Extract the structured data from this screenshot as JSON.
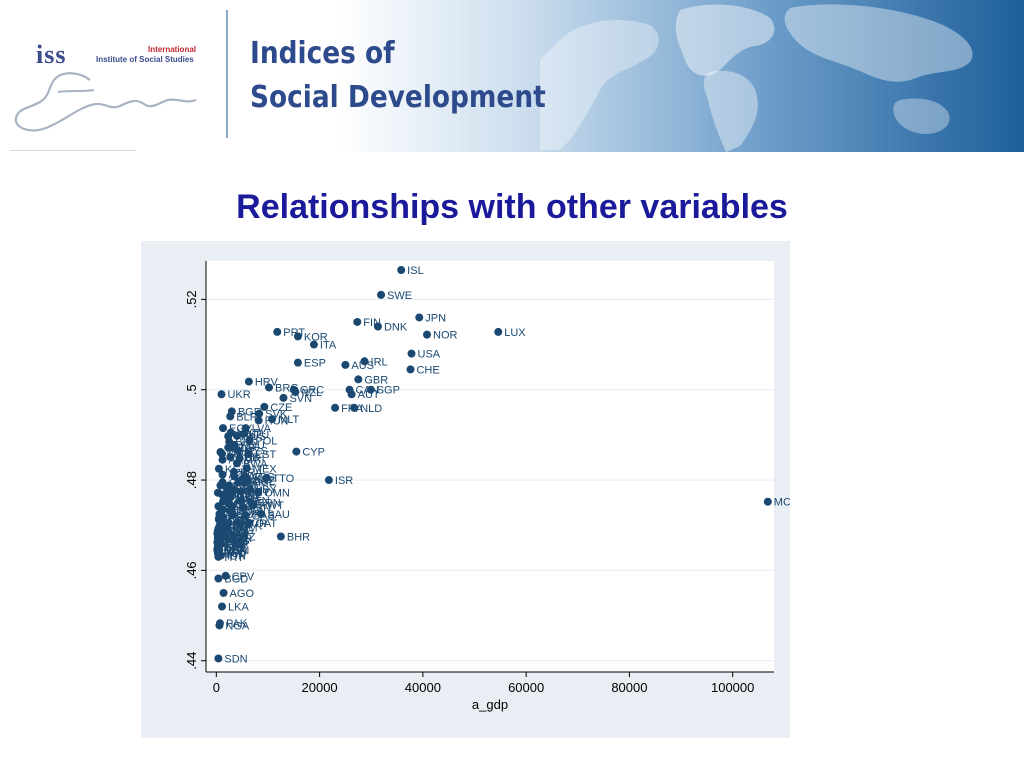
{
  "header": {
    "logo_text": "iss",
    "logo_org_line1": "International",
    "logo_org_line2": "Institute of Social Studies",
    "title_line1": "Indices of",
    "title_line2": "Social Development"
  },
  "slide_title": "Relationships with other variables",
  "colors": {
    "marker": "#1a4870",
    "title": "#1a1a9a",
    "panel": "#e8eef3",
    "grid": "#e8eef3"
  },
  "chart_data": {
    "type": "scatter",
    "title": "",
    "xlabel": "a_gdp",
    "ylabel": "",
    "xlim": [
      -2000,
      108000
    ],
    "ylim": [
      0.4375,
      0.5285
    ],
    "x_ticks": [
      0,
      20000,
      40000,
      60000,
      80000,
      100000
    ],
    "x_tick_labels": [
      "0",
      "20000",
      "40000",
      "60000",
      "80000",
      "100000"
    ],
    "y_ticks": [
      0.44,
      0.46,
      0.48,
      0.5,
      0.52
    ],
    "y_tick_labels": [
      ".44",
      ".46",
      ".48",
      ".5",
      ".52"
    ],
    "grid": true,
    "points": [
      {
        "label": "ISL",
        "x": 35800,
        "y": 0.5265
      },
      {
        "label": "SWE",
        "x": 31900,
        "y": 0.521
      },
      {
        "label": "JPN",
        "x": 39300,
        "y": 0.516
      },
      {
        "label": "FIN",
        "x": 27300,
        "y": 0.515
      },
      {
        "label": "DNK",
        "x": 31300,
        "y": 0.514
      },
      {
        "label": "LUX",
        "x": 54600,
        "y": 0.5128
      },
      {
        "label": "NOR",
        "x": 40800,
        "y": 0.5122
      },
      {
        "label": "PRT",
        "x": 11800,
        "y": 0.5128
      },
      {
        "label": "KOR",
        "x": 15800,
        "y": 0.5118
      },
      {
        "label": "ITA",
        "x": 18900,
        "y": 0.51
      },
      {
        "label": "USA",
        "x": 37800,
        "y": 0.508
      },
      {
        "label": "ESP",
        "x": 15800,
        "y": 0.506
      },
      {
        "label": "AUS",
        "x": 25000,
        "y": 0.5055
      },
      {
        "label": "IRL",
        "x": 28700,
        "y": 0.5063
      },
      {
        "label": "CHE",
        "x": 37600,
        "y": 0.5045
      },
      {
        "label": "GBR",
        "x": 27500,
        "y": 0.5023
      },
      {
        "label": "HRV",
        "x": 6300,
        "y": 0.5018
      },
      {
        "label": "BRG",
        "x": 10200,
        "y": 0.5005
      },
      {
        "label": "GRC",
        "x": 15000,
        "y": 0.5
      },
      {
        "label": "CAN",
        "x": 25800,
        "y": 0.5
      },
      {
        "label": "SGP",
        "x": 29900,
        "y": 0.5
      },
      {
        "label": "NZL",
        "x": 15300,
        "y": 0.4995
      },
      {
        "label": "AUT",
        "x": 26200,
        "y": 0.499
      },
      {
        "label": "UKR",
        "x": 1000,
        "y": 0.499
      },
      {
        "label": "SVN",
        "x": 13000,
        "y": 0.4982
      },
      {
        "label": "FRA",
        "x": 23000,
        "y": 0.496
      },
      {
        "label": "NLD",
        "x": 26700,
        "y": 0.496
      },
      {
        "label": "SVK",
        "x": 8300,
        "y": 0.4947
      },
      {
        "label": "BLR",
        "x": 2700,
        "y": 0.4941
      },
      {
        "label": "MLT",
        "x": 10800,
        "y": 0.4935
      },
      {
        "label": "LVA",
        "x": 5700,
        "y": 0.4915
      },
      {
        "label": "RUS",
        "x": 4000,
        "y": 0.4898
      },
      {
        "label": "CYP",
        "x": 15500,
        "y": 0.4863
      },
      {
        "label": "EST",
        "x": 6300,
        "y": 0.4858
      },
      {
        "label": "BWA",
        "x": 4000,
        "y": 0.4837
      },
      {
        "label": "ISR",
        "x": 21800,
        "y": 0.48
      },
      {
        "label": "MCO",
        "x": 106800,
        "y": 0.4752
      },
      {
        "label": "BRN",
        "x": 6800,
        "y": 0.475
      },
      {
        "label": "SAU",
        "x": 8700,
        "y": 0.4725
      },
      {
        "label": "BHR",
        "x": 12500,
        "y": 0.4675
      },
      {
        "label": "IDN",
        "x": 900,
        "y": 0.4633
      },
      {
        "label": "CPV",
        "x": 1800,
        "y": 0.4588
      },
      {
        "label": "BGD",
        "x": 400,
        "y": 0.4582
      },
      {
        "label": "AGO",
        "x": 1400,
        "y": 0.455
      },
      {
        "label": "LKA",
        "x": 1100,
        "y": 0.452
      },
      {
        "label": "PAK",
        "x": 700,
        "y": 0.4483
      },
      {
        "label": "NGA",
        "x": 600,
        "y": 0.4478
      },
      {
        "label": "SDN",
        "x": 400,
        "y": 0.4405
      },
      {
        "label": "EGY",
        "x": 1300,
        "y": 0.4915
      },
      {
        "label": "THA",
        "x": 2300,
        "y": 0.4897
      },
      {
        "label": "ZAF",
        "x": 3100,
        "y": 0.4873
      },
      {
        "label": "MYS",
        "x": 4200,
        "y": 0.4865
      },
      {
        "label": "CUB",
        "x": 2700,
        "y": 0.4851
      },
      {
        "label": "MEX",
        "x": 5900,
        "y": 0.4826
      },
      {
        "label": "ARG",
        "x": 5600,
        "y": 0.4808
      },
      {
        "label": "CHN",
        "x": 1200,
        "y": 0.4795
      },
      {
        "label": "COL",
        "x": 2000,
        "y": 0.4782
      },
      {
        "label": "IRN",
        "x": 2300,
        "y": 0.4769
      },
      {
        "label": "MAR",
        "x": 1300,
        "y": 0.4753
      },
      {
        "label": "IND",
        "x": 600,
        "y": 0.4725
      },
      {
        "label": "VNM",
        "x": 500,
        "y": 0.4712
      },
      {
        "label": "KEN",
        "x": 500,
        "y": 0.4693
      },
      {
        "label": "GHA",
        "x": 400,
        "y": 0.4677
      },
      {
        "label": "ETH",
        "x": 200,
        "y": 0.4662
      },
      {
        "label": "TZA",
        "x": 300,
        "y": 0.4655
      },
      {
        "label": "UGA",
        "x": 300,
        "y": 0.4645
      },
      {
        "label": "NPL",
        "x": 300,
        "y": 0.4641
      },
      {
        "label": "HTI",
        "x": 400,
        "y": 0.463
      },
      {
        "label": "ZMB",
        "x": 500,
        "y": 0.4665
      },
      {
        "label": "MOZ",
        "x": 300,
        "y": 0.4672
      },
      {
        "label": "SEN",
        "x": 700,
        "y": 0.4688
      },
      {
        "label": "TUR",
        "x": 4300,
        "y": 0.4705
      },
      {
        "label": "LBN",
        "x": 5300,
        "y": 0.4739
      },
      {
        "label": "URY",
        "x": 4800,
        "y": 0.4775
      },
      {
        "label": "CHL",
        "x": 5900,
        "y": 0.4797
      },
      {
        "label": "BRA",
        "x": 3400,
        "y": 0.4818
      },
      {
        "label": "POL",
        "x": 6400,
        "y": 0.4888
      },
      {
        "label": "LTU",
        "x": 5200,
        "y": 0.4902
      },
      {
        "label": "HUN",
        "x": 8200,
        "y": 0.4932
      },
      {
        "label": "CZE",
        "x": 9300,
        "y": 0.4962
      },
      {
        "label": "BGR",
        "x": 3000,
        "y": 0.4952
      },
      {
        "label": "ROU",
        "x": 3500,
        "y": 0.4878
      },
      {
        "label": "KAZ",
        "x": 3500,
        "y": 0.4808
      },
      {
        "label": "ARM",
        "x": 1200,
        "y": 0.4845
      },
      {
        "label": "GEO",
        "x": 1100,
        "y": 0.4858
      },
      {
        "label": "AZE",
        "x": 1200,
        "y": 0.4812
      },
      {
        "label": "MNG",
        "x": 800,
        "y": 0.4788
      },
      {
        "label": "KGZ",
        "x": 500,
        "y": 0.4825
      },
      {
        "label": "TJK",
        "x": 300,
        "y": 0.4772
      },
      {
        "label": "UZB",
        "x": 400,
        "y": 0.4742
      },
      {
        "label": "MDA",
        "x": 800,
        "y": 0.4862
      },
      {
        "label": "BIH",
        "x": 2500,
        "y": 0.4885
      },
      {
        "label": "MKD",
        "x": 2800,
        "y": 0.4905
      },
      {
        "label": "ALB",
        "x": 2300,
        "y": 0.4872
      },
      {
        "label": "DZA",
        "x": 2800,
        "y": 0.4762
      },
      {
        "label": "TUN",
        "x": 2900,
        "y": 0.4772
      },
      {
        "label": "JOR",
        "x": 2200,
        "y": 0.4758
      },
      {
        "label": "SYR",
        "x": 1300,
        "y": 0.4735
      },
      {
        "label": "YEM",
        "x": 600,
        "y": 0.4645
      },
      {
        "label": "PHL",
        "x": 1100,
        "y": 0.4708
      },
      {
        "label": "PER",
        "x": 2500,
        "y": 0.4788
      },
      {
        "label": "VEN",
        "x": 4800,
        "y": 0.4755
      },
      {
        "label": "ECU",
        "x": 2400,
        "y": 0.4748
      },
      {
        "label": "BOL",
        "x": 1000,
        "y": 0.4722
      },
      {
        "label": "PRY",
        "x": 1300,
        "y": 0.4718
      },
      {
        "label": "GTM",
        "x": 2100,
        "y": 0.4695
      },
      {
        "label": "HND",
        "x": 1100,
        "y": 0.4702
      },
      {
        "label": "NIC",
        "x": 900,
        "y": 0.4685
      },
      {
        "label": "SLV",
        "x": 2400,
        "y": 0.4705
      },
      {
        "label": "DOM",
        "x": 2600,
        "y": 0.4732
      },
      {
        "label": "JAM",
        "x": 3600,
        "y": 0.4778
      },
      {
        "label": "PAN",
        "x": 4300,
        "y": 0.4795
      },
      {
        "label": "CRI",
        "x": 4500,
        "y": 0.4848
      },
      {
        "label": "MUS",
        "x": 5000,
        "y": 0.4802
      },
      {
        "label": "NAM",
        "x": 2400,
        "y": 0.4758
      },
      {
        "label": "GAB",
        "x": 5700,
        "y": 0.4722
      },
      {
        "label": "OMN",
        "x": 8100,
        "y": 0.4772
      },
      {
        "label": "LBY",
        "x": 6500,
        "y": 0.478
      },
      {
        "label": "TTO",
        "x": 9700,
        "y": 0.4805
      },
      {
        "label": "KWT",
        "x": 7200,
        "y": 0.4745
      },
      {
        "label": "QAT",
        "x": 6400,
        "y": 0.4705
      },
      {
        "label": "ARE",
        "x": 6000,
        "y": 0.4798
      },
      {
        "label": "CMR",
        "x": 900,
        "y": 0.4672
      },
      {
        "label": "CIV",
        "x": 900,
        "y": 0.4658
      },
      {
        "label": "MLI",
        "x": 400,
        "y": 0.4658
      },
      {
        "label": "NER",
        "x": 200,
        "y": 0.4648
      },
      {
        "label": "BFA",
        "x": 300,
        "y": 0.467
      },
      {
        "label": "TCD",
        "x": 300,
        "y": 0.4638
      },
      {
        "label": "RWA",
        "x": 300,
        "y": 0.4678
      },
      {
        "label": "MWI",
        "x": 200,
        "y": 0.4682
      },
      {
        "label": "ZWE",
        "x": 500,
        "y": 0.4715
      },
      {
        "label": "LSO",
        "x": 600,
        "y": 0.4698
      },
      {
        "label": "SWZ",
        "x": 1700,
        "y": 0.4675
      },
      {
        "label": "MDG",
        "x": 300,
        "y": 0.4688
      },
      {
        "label": "BEN",
        "x": 500,
        "y": 0.4665
      },
      {
        "label": "TGO",
        "x": 400,
        "y": 0.4661
      },
      {
        "label": "GIN",
        "x": 500,
        "y": 0.4652
      },
      {
        "label": "SLE",
        "x": 200,
        "y": 0.4644
      },
      {
        "label": "COG",
        "x": 1200,
        "y": 0.4689
      },
      {
        "label": "SUR",
        "x": 3100,
        "y": 0.4725
      },
      {
        "label": "GUY",
        "x": 1100,
        "y": 0.4768
      },
      {
        "label": "FJI",
        "x": 3100,
        "y": 0.4742
      },
      {
        "label": "PNG",
        "x": 700,
        "y": 0.4666
      },
      {
        "label": "KHM",
        "x": 400,
        "y": 0.4692
      },
      {
        "label": "LAO",
        "x": 500,
        "y": 0.4676
      }
    ]
  }
}
